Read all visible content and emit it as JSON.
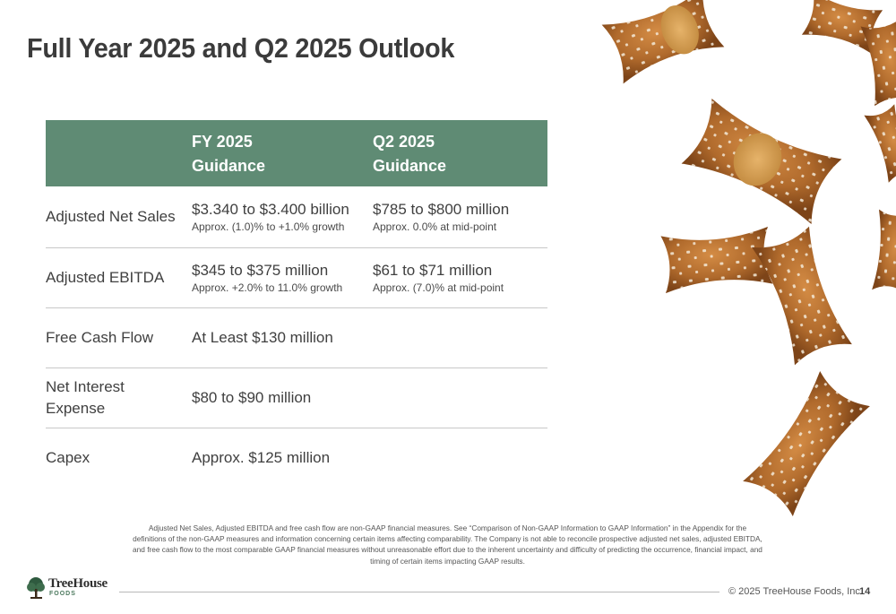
{
  "title": "Full Year 2025 and Q2 2025 Outlook",
  "table": {
    "header": {
      "fy_line1": "FY 2025",
      "fy_line2": "Guidance",
      "q2_line1": "Q2 2025",
      "q2_line2": "Guidance"
    },
    "rows": [
      {
        "label": "Adjusted Net Sales",
        "fy_main": "$3.340 to $3.400 billion",
        "fy_sub": "Approx. (1.0)% to +1.0% growth",
        "q2_main": "$785 to $800 million",
        "q2_sub": "Approx. 0.0% at mid-point"
      },
      {
        "label": "Adjusted EBITDA",
        "fy_main": "$345 to $375 million",
        "fy_sub": "Approx. +2.0% to 11.0% growth",
        "q2_main": "$61 to $71 million",
        "q2_sub": "Approx. (7.0)% at mid-point"
      },
      {
        "label": "Free Cash Flow",
        "fy_main": "At Least $130 million"
      },
      {
        "label_line1": "Net Interest",
        "label_line2": "Expense",
        "fy_main": "$80 to $90 million"
      },
      {
        "label": "Capex",
        "fy_main": "Approx. $125 million"
      }
    ]
  },
  "footnote": "Adjusted Net Sales, Adjusted EBITDA and free cash flow are non-GAAP financial measures. See “Comparison of Non-GAAP Information to GAAP Information” in the Appendix for the definitions of the non-GAAP measures and information concerning certain items affecting comparability. The Company is not able to reconcile prospective adjusted net sales, adjusted EBITDA, and free cash flow to the most comparable GAAP financial measures without unreasonable effort due to the inherent uncertainty and difficulty of predicting the occurrence, financial impact, and timing of certain items impacting GAAP results.",
  "footer": {
    "logo_name": "TreeHouse",
    "logo_sub": "FOODS",
    "copyright": "© 2025 TreeHouse Foods, Inc.",
    "page_number": "14"
  },
  "colors": {
    "header_green": "#5f8b74",
    "pretzel_brown": "#b66d2f",
    "title_gray": "#3b3b3b"
  },
  "icons": [
    "tree-logo-icon",
    "pretzel-image"
  ]
}
